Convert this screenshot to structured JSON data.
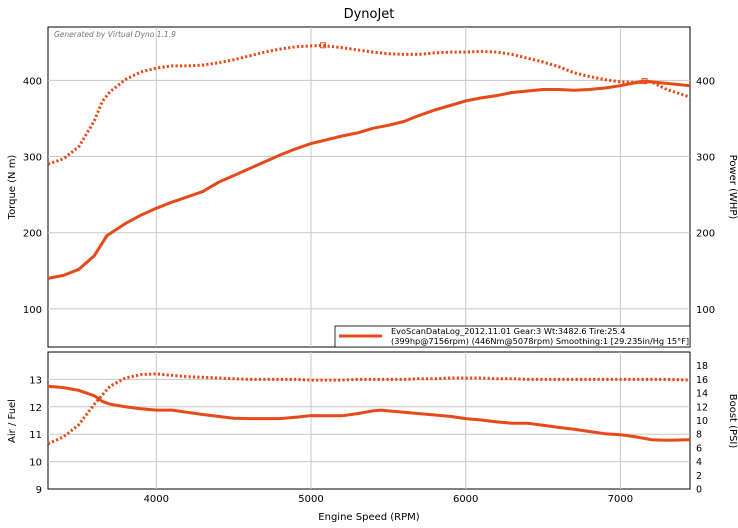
{
  "chart_data": [
    {
      "type": "line",
      "title": "DynoJet",
      "watermark": "Generated by Virtual Dyno 1.1.9",
      "ylabel_left": "Torque (N m)",
      "ylabel_right": "Power (WHP)",
      "xlim": [
        3300,
        7450
      ],
      "ylim": [
        50,
        470
      ],
      "grid": true,
      "y_ticks": [
        100,
        200,
        300,
        400
      ],
      "legend": {
        "position": "bottom-right",
        "line1": "EvoScanDataLog_2012.11.01 Gear:3 Wt:3482.6 Tire:25.4",
        "line2": "(399hp@7156rpm) (446Nm@5078rpm) Smoothing:1 [29.235in/Hg 15°F]"
      },
      "series": [
        {
          "style": "solid",
          "color": "#e64a19",
          "x": [
            3300,
            3400,
            3500,
            3600,
            3680,
            3800,
            3900,
            4000,
            4100,
            4200,
            4300,
            4400,
            4500,
            4600,
            4700,
            4800,
            4900,
            5000,
            5100,
            5200,
            5300,
            5400,
            5500,
            5600,
            5700,
            5800,
            5900,
            6000,
            6100,
            6200,
            6300,
            6400,
            6500,
            6600,
            6700,
            6800,
            6900,
            7000,
            7100,
            7156,
            7200,
            7300,
            7450
          ],
          "y": [
            140,
            144,
            152,
            170,
            196,
            212,
            223,
            232,
            240,
            247,
            254,
            266,
            275,
            284,
            293,
            302,
            310,
            317,
            322,
            327,
            331,
            337,
            341,
            346,
            354,
            361,
            367,
            373,
            377,
            380,
            384,
            386,
            388,
            388,
            387,
            388,
            390,
            393,
            397,
            399,
            398,
            396,
            393
          ]
        },
        {
          "style": "dotted",
          "color": "#e64a19",
          "x": [
            3300,
            3400,
            3500,
            3600,
            3650,
            3700,
            3800,
            3900,
            4000,
            4100,
            4200,
            4300,
            4400,
            4500,
            4600,
            4700,
            4800,
            4900,
            5000,
            5078,
            5100,
            5200,
            5300,
            5400,
            5500,
            5600,
            5700,
            5800,
            5900,
            6000,
            6100,
            6200,
            6300,
            6400,
            6500,
            6600,
            6700,
            6800,
            6900,
            7000,
            7100,
            7200,
            7300,
            7450
          ],
          "y": [
            290,
            297,
            313,
            347,
            372,
            385,
            401,
            411,
            416,
            419,
            419,
            420,
            423,
            427,
            432,
            437,
            441,
            444,
            445,
            446,
            445,
            443,
            440,
            437,
            435,
            434,
            434,
            436,
            437,
            437,
            438,
            437,
            434,
            429,
            424,
            418,
            410,
            405,
            401,
            398,
            397,
            398,
            388,
            378
          ]
        }
      ]
    },
    {
      "type": "line",
      "xlabel": "Engine Speed (RPM)",
      "ylabel_left": "Air / Fuel",
      "ylabel_right": "Boost (PSI)",
      "xlim": [
        3300,
        7450
      ],
      "ylim_left": [
        9,
        14
      ],
      "ylim_right": [
        0,
        20
      ],
      "grid": true,
      "x_ticks": [
        4000,
        5000,
        6000,
        7000
      ],
      "y_ticks_left": [
        9,
        10,
        11,
        12,
        13
      ],
      "y_ticks_right": [
        0,
        2,
        4,
        6,
        8,
        10,
        12,
        14,
        16,
        18
      ],
      "series": [
        {
          "style": "solid",
          "axis": "left",
          "color": "#e64a19",
          "x": [
            3300,
            3400,
            3500,
            3600,
            3650,
            3700,
            3800,
            3900,
            4000,
            4100,
            4200,
            4300,
            4400,
            4500,
            4600,
            4700,
            4800,
            4900,
            5000,
            5100,
            5200,
            5300,
            5400,
            5450,
            5500,
            5600,
            5700,
            5800,
            5900,
            6000,
            6100,
            6200,
            6300,
            6400,
            6500,
            6600,
            6700,
            6800,
            6900,
            7000,
            7100,
            7200,
            7300,
            7450
          ],
          "y": [
            12.75,
            12.7,
            12.6,
            12.4,
            12.2,
            12.1,
            12.0,
            11.93,
            11.88,
            11.88,
            11.8,
            11.72,
            11.65,
            11.58,
            11.57,
            11.57,
            11.57,
            11.62,
            11.68,
            11.67,
            11.67,
            11.75,
            11.85,
            11.88,
            11.85,
            11.8,
            11.75,
            11.7,
            11.65,
            11.57,
            11.52,
            11.45,
            11.4,
            11.4,
            11.33,
            11.25,
            11.18,
            11.1,
            11.02,
            10.98,
            10.9,
            10.8,
            10.78,
            10.8
          ]
        },
        {
          "style": "dotted",
          "axis": "right",
          "color": "#e64a19",
          "x": [
            3300,
            3400,
            3500,
            3600,
            3700,
            3800,
            3900,
            4000,
            4100,
            4200,
            4300,
            4400,
            4500,
            4600,
            4700,
            4800,
            4900,
            5000,
            5100,
            5200,
            5300,
            5400,
            5500,
            5600,
            5700,
            5800,
            5900,
            6000,
            6100,
            6200,
            6300,
            6400,
            6500,
            6600,
            6700,
            6800,
            6900,
            7000,
            7100,
            7200,
            7300,
            7450
          ],
          "y": [
            6.6,
            7.6,
            9.4,
            12.4,
            15.0,
            16.2,
            16.7,
            16.8,
            16.6,
            16.4,
            16.3,
            16.2,
            16.1,
            16.0,
            16.0,
            16.0,
            16.0,
            15.9,
            15.9,
            15.9,
            16.0,
            16.0,
            16.0,
            16.0,
            16.1,
            16.1,
            16.2,
            16.2,
            16.2,
            16.1,
            16.1,
            16.0,
            16.0,
            16.0,
            16.0,
            16.0,
            16.0,
            16.0,
            16.0,
            16.0,
            16.0,
            15.9
          ]
        }
      ]
    }
  ]
}
